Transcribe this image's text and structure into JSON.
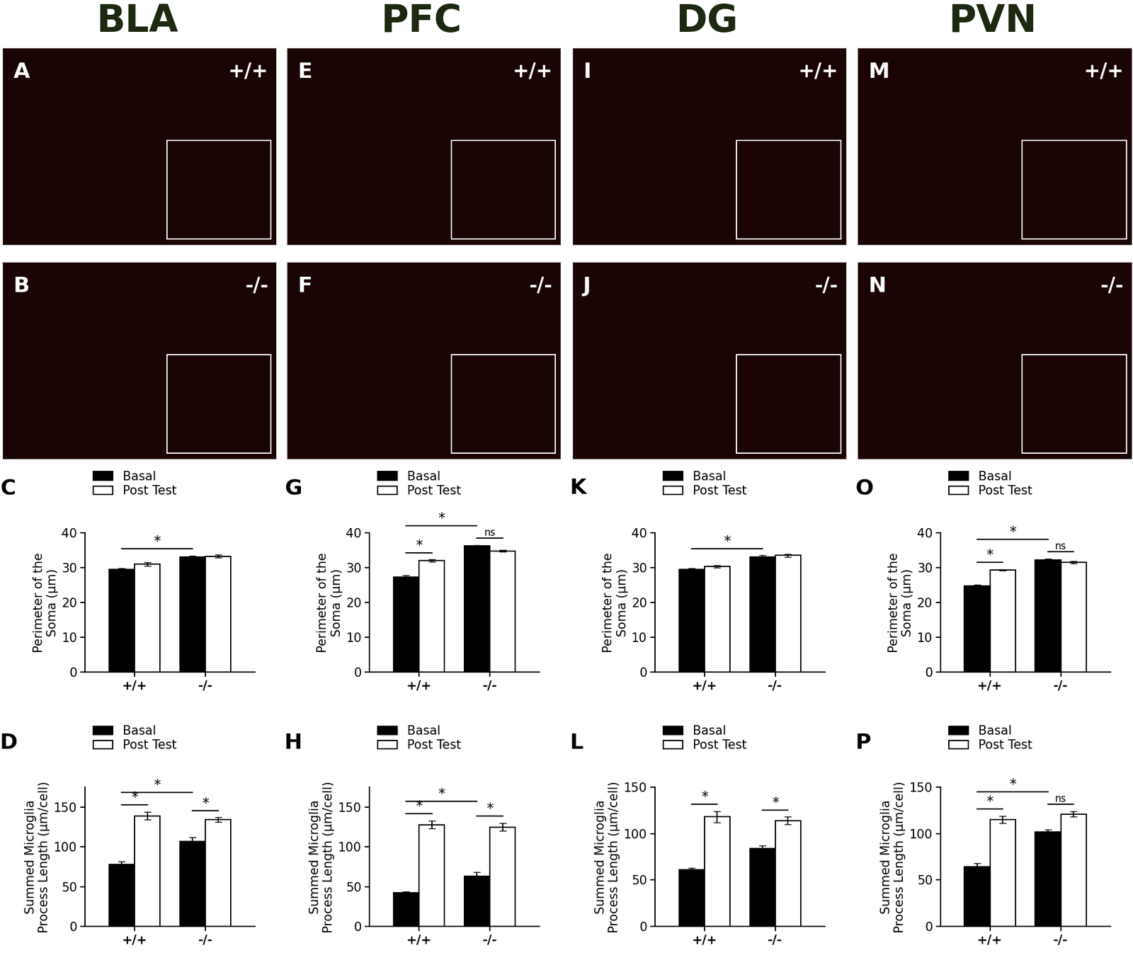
{
  "columns": [
    {
      "title": "BLA",
      "images": [
        {
          "label": "A",
          "genotype": "+/+"
        },
        {
          "label": "B",
          "genotype": "-/-"
        }
      ]
    },
    {
      "title": "PFC",
      "images": [
        {
          "label": "E",
          "genotype": "+/+"
        },
        {
          "label": "F",
          "genotype": "-/-"
        }
      ]
    },
    {
      "title": "DG",
      "images": [
        {
          "label": "I",
          "genotype": "+/+"
        },
        {
          "label": "J",
          "genotype": "-/-"
        }
      ]
    },
    {
      "title": "PVN",
      "images": [
        {
          "label": "M",
          "genotype": "+/+"
        },
        {
          "label": "N",
          "genotype": "-/-"
        }
      ]
    }
  ],
  "chart_data": [
    {
      "type": "bar",
      "panel": "C",
      "y_label": "Perimeter of the\nSoma (µm)",
      "categories": [
        "+/+",
        "-/-"
      ],
      "series": [
        {
          "name": "Basal",
          "color": "#000000",
          "values": [
            29.5,
            33.0
          ],
          "errors": [
            0.4,
            0.4
          ]
        },
        {
          "name": "Post Test",
          "color": "#ffffff",
          "values": [
            31.0,
            33.3
          ],
          "errors": [
            0.5,
            0.4
          ]
        }
      ],
      "ylim": [
        0,
        40
      ],
      "yticks": [
        0,
        10,
        20,
        30,
        40
      ],
      "legend": "upper left",
      "annotations": [
        {
          "text": "*",
          "from": [
            "+/+",
            "Basal"
          ],
          "to": [
            "-/-",
            "Basal"
          ]
        }
      ]
    },
    {
      "type": "bar",
      "panel": "D",
      "y_label": "Summed Microglia\nProcess Length (µm/cell)",
      "categories": [
        "+/+",
        "-/-"
      ],
      "series": [
        {
          "name": "Basal",
          "color": "#000000",
          "values": [
            78,
            107
          ],
          "errors": [
            4,
            5
          ]
        },
        {
          "name": "Post Test",
          "color": "#ffffff",
          "values": [
            139,
            134
          ],
          "errors": [
            5,
            3
          ]
        }
      ],
      "ylim": [
        0,
        175
      ],
      "yticks": [
        0,
        50,
        100,
        150
      ],
      "legend": "upper left",
      "annotations": [
        {
          "text": "*",
          "from": [
            "+/+",
            "Basal"
          ],
          "to": [
            "+/+",
            "Post Test"
          ]
        },
        {
          "text": "*",
          "from": [
            "-/-",
            "Basal"
          ],
          "to": [
            "-/-",
            "Post Test"
          ]
        },
        {
          "text": "*",
          "from": [
            "+/+",
            "Basal"
          ],
          "to": [
            "-/-",
            "Basal"
          ]
        }
      ]
    },
    {
      "type": "bar",
      "panel": "G",
      "y_label": "Perimeter of the\nSoma (µm)",
      "categories": [
        "+/+",
        "-/-"
      ],
      "series": [
        {
          "name": "Basal",
          "color": "#000000",
          "values": [
            27.3,
            36.2
          ],
          "errors": [
            0.5,
            0.3
          ]
        },
        {
          "name": "Post Test",
          "color": "#ffffff",
          "values": [
            32.0,
            34.8
          ],
          "errors": [
            0.3,
            0.3
          ]
        }
      ],
      "ylim": [
        0,
        40
      ],
      "yticks": [
        0,
        10,
        20,
        30,
        40
      ],
      "legend": "upper left",
      "annotations": [
        {
          "text": "*",
          "from": [
            "+/+",
            "Basal"
          ],
          "to": [
            "+/+",
            "Post Test"
          ]
        },
        {
          "text": "ns",
          "from": [
            "-/-",
            "Basal"
          ],
          "to": [
            "-/-",
            "Post Test"
          ]
        },
        {
          "text": "*",
          "from": [
            "+/+",
            "Basal"
          ],
          "to": [
            "-/-",
            "Basal"
          ]
        }
      ]
    },
    {
      "type": "bar",
      "panel": "H",
      "y_label": "Summed Microglia\nProcess Length (µm/cell)",
      "categories": [
        "+/+",
        "-/-"
      ],
      "series": [
        {
          "name": "Basal",
          "color": "#000000",
          "values": [
            42,
            63
          ],
          "errors": [
            2,
            5
          ]
        },
        {
          "name": "Post Test",
          "color": "#ffffff",
          "values": [
            128,
            125
          ],
          "errors": [
            5,
            5
          ]
        }
      ],
      "ylim": [
        0,
        175
      ],
      "yticks": [
        0,
        50,
        100,
        150
      ],
      "legend": "upper left",
      "annotations": [
        {
          "text": "*",
          "from": [
            "+/+",
            "Basal"
          ],
          "to": [
            "+/+",
            "Post Test"
          ]
        },
        {
          "text": "*",
          "from": [
            "-/-",
            "Basal"
          ],
          "to": [
            "-/-",
            "Post Test"
          ]
        },
        {
          "text": "*",
          "from": [
            "+/+",
            "Basal"
          ],
          "to": [
            "-/-",
            "Basal"
          ]
        }
      ]
    },
    {
      "type": "bar",
      "panel": "K",
      "y_label": "Perimeter of the\nSoma (µm)",
      "categories": [
        "+/+",
        "-/-"
      ],
      "series": [
        {
          "name": "Basal",
          "color": "#000000",
          "values": [
            29.5,
            33.0
          ],
          "errors": [
            0.3,
            0.5
          ]
        },
        {
          "name": "Post Test",
          "color": "#ffffff",
          "values": [
            30.3,
            33.5
          ],
          "errors": [
            0.3,
            0.4
          ]
        }
      ],
      "ylim": [
        0,
        40
      ],
      "yticks": [
        0,
        10,
        20,
        30,
        40
      ],
      "legend": "upper left",
      "annotations": [
        {
          "text": "*",
          "from": [
            "+/+",
            "Basal"
          ],
          "to": [
            "-/-",
            "Basal"
          ]
        }
      ]
    },
    {
      "type": "bar",
      "panel": "L",
      "y_label": "Summed Microglia\nProcess Length (µm/cell)",
      "categories": [
        "+/+",
        "-/-"
      ],
      "series": [
        {
          "name": "Basal",
          "color": "#000000",
          "values": [
            61,
            84
          ],
          "errors": [
            2,
            3
          ]
        },
        {
          "name": "Post Test",
          "color": "#ffffff",
          "values": [
            118,
            114
          ],
          "errors": [
            6,
            4
          ]
        }
      ],
      "ylim": [
        0,
        150
      ],
      "yticks": [
        0,
        50,
        100,
        150
      ],
      "legend": "upper left",
      "annotations": [
        {
          "text": "*",
          "from": [
            "+/+",
            "Basal"
          ],
          "to": [
            "+/+",
            "Post Test"
          ]
        },
        {
          "text": "*",
          "from": [
            "-/-",
            "Basal"
          ],
          "to": [
            "-/-",
            "Post Test"
          ]
        }
      ]
    },
    {
      "type": "bar",
      "panel": "O",
      "y_label": "Perimeter of the\nSoma (µm)",
      "categories": [
        "+/+",
        "-/-"
      ],
      "series": [
        {
          "name": "Basal",
          "color": "#000000",
          "values": [
            24.8,
            32.2
          ],
          "errors": [
            0.2,
            0.3
          ]
        },
        {
          "name": "Post Test",
          "color": "#ffffff",
          "values": [
            29.3,
            31.5
          ],
          "errors": [
            0.2,
            0.3
          ]
        }
      ],
      "ylim": [
        0,
        40
      ],
      "yticks": [
        0,
        10,
        20,
        30,
        40
      ],
      "legend": "upper left",
      "annotations": [
        {
          "text": "*",
          "from": [
            "+/+",
            "Basal"
          ],
          "to": [
            "+/+",
            "Post Test"
          ]
        },
        {
          "text": "ns",
          "from": [
            "-/-",
            "Basal"
          ],
          "to": [
            "-/-",
            "Post Test"
          ]
        },
        {
          "text": "*",
          "from": [
            "+/+",
            "Basal"
          ],
          "to": [
            "-/-",
            "Basal"
          ]
        }
      ]
    },
    {
      "type": "bar",
      "panel": "P",
      "y_label": "Summed Microglia\nProcess Length (µm/cell)",
      "categories": [
        "+/+",
        "-/-"
      ],
      "series": [
        {
          "name": "Basal",
          "color": "#000000",
          "values": [
            64,
            102
          ],
          "errors": [
            4,
            2
          ]
        },
        {
          "name": "Post Test",
          "color": "#ffffff",
          "values": [
            115,
            121
          ],
          "errors": [
            4,
            3
          ]
        }
      ],
      "ylim": [
        0,
        150
      ],
      "yticks": [
        0,
        50,
        100,
        150
      ],
      "legend": "upper left",
      "annotations": [
        {
          "text": "*",
          "from": [
            "+/+",
            "Basal"
          ],
          "to": [
            "+/+",
            "Post Test"
          ]
        },
        {
          "text": "ns",
          "from": [
            "-/-",
            "Basal"
          ],
          "to": [
            "-/-",
            "Post Test"
          ]
        },
        {
          "text": "*",
          "from": [
            "+/+",
            "Basal"
          ],
          "to": [
            "-/-",
            "Basal"
          ]
        }
      ]
    }
  ]
}
